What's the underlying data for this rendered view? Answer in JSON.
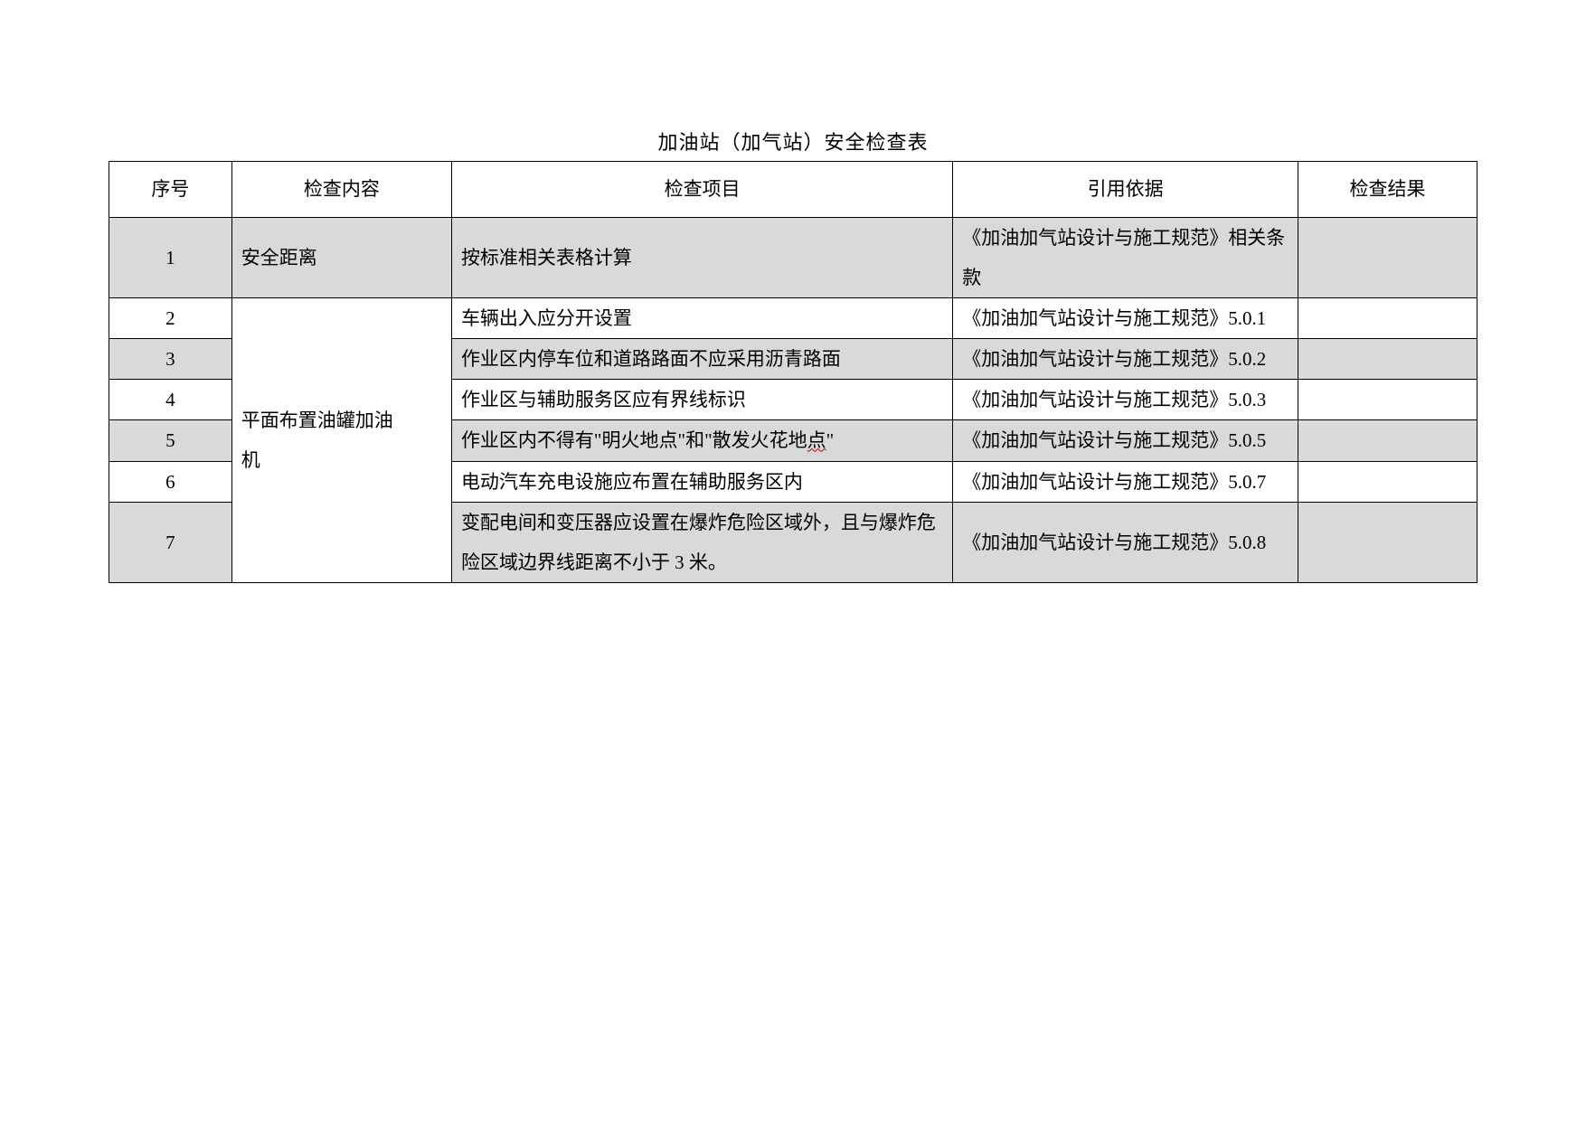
{
  "title": "加油站（加气站）安全检查表",
  "columns": {
    "seq": "序号",
    "content": "检查内容",
    "item": "检查项目",
    "ref": "引用依据",
    "result": "检查结果"
  },
  "content_group1": "安全距离",
  "content_group2_line1": "平面布置油罐加油",
  "content_group2_line2": "机",
  "rows": [
    {
      "seq": "1",
      "item": "按标准相关表格计算",
      "ref": "《加油加气站设计与施工规范》相关条款"
    },
    {
      "seq": "2",
      "item": "车辆出入应分开设置",
      "ref": "《加油加气站设计与施工规范》5.0.1"
    },
    {
      "seq": "3",
      "item": "作业区内停车位和道路路面不应采用沥青路面",
      "ref": "《加油加气站设计与施工规范》5.0.2"
    },
    {
      "seq": "4",
      "item": "作业区与辅助服务区应有界线标识",
      "ref": "《加油加气站设计与施工规范》5.0.3"
    },
    {
      "seq": "5",
      "item_pre": "作业区内不得有\"明火地点\"和\"散发火花地",
      "item_wavy": "点",
      "item_post": "\"",
      "ref": "《加油加气站设计与施工规范》5.0.5"
    },
    {
      "seq": "6",
      "item": "电动汽车充电设施应布置在辅助服务区内",
      "ref": "《加油加气站设计与施工规范》5.0.7"
    },
    {
      "seq": "7",
      "item": "变配电间和变压器应设置在爆炸危险区域外，且与爆炸危险区域边界线距离不小于 3 米。",
      "ref": "《加油加气站设计与施工规范》5.0.8"
    }
  ],
  "colors": {
    "shade": "#d9d9d9",
    "border": "#000000",
    "text": "#000000",
    "bg": "#ffffff"
  }
}
